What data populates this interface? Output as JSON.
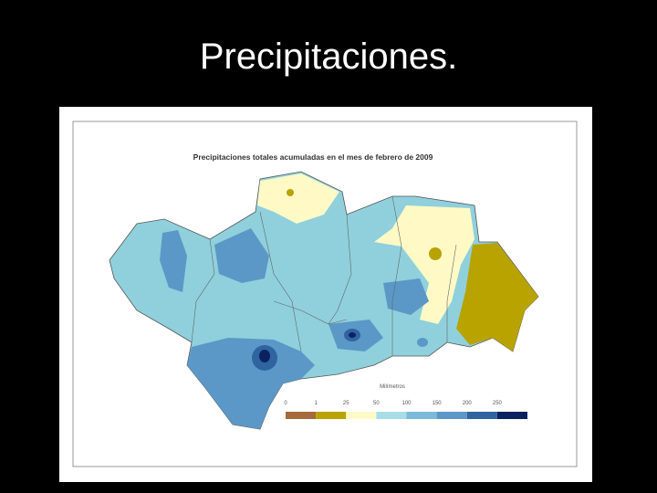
{
  "title": "Precipitaciones.",
  "map": {
    "title": "Precipitaciones totales acumuladas en el mes de febrero de 2009",
    "legend": {
      "title": "Milímetros",
      "ticks": [
        0,
        1,
        25,
        50,
        100,
        150,
        200,
        250
      ],
      "colors": [
        "#a56a3a",
        "#b8a300",
        "#fff9c6",
        "#a8dde6",
        "#7bbbd9",
        "#5b98c7",
        "#2f64a0",
        "#0c2260"
      ]
    }
  }
}
